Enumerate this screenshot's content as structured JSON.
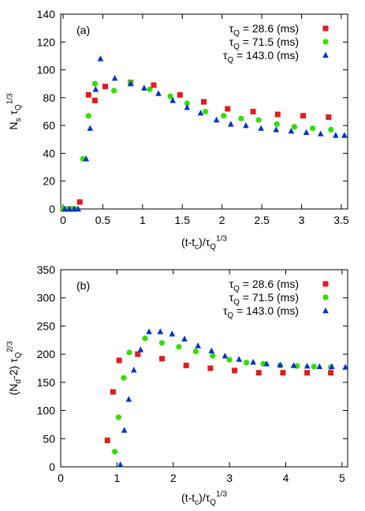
{
  "chart_data": [
    {
      "type": "scatter",
      "panel_label": "(a)",
      "xlabel": "(t-t_c)/τ_Q^{1/3}",
      "ylabel": "N_s τ_Q^{1/3}",
      "xlim": [
        -0.03,
        3.58
      ],
      "ylim": [
        0,
        140
      ],
      "xticks": [
        0,
        0.5,
        1,
        1.5,
        2,
        2.5,
        3,
        3.5
      ],
      "xtick_labels": [
        "0",
        "0.5",
        "1",
        "1.5",
        "2",
        "2.5",
        "3",
        "3.5"
      ],
      "yticks": [
        0,
        20,
        40,
        60,
        80,
        100,
        120,
        140
      ],
      "ytick_labels": [
        "0",
        "20",
        "40",
        "60",
        "80",
        "100",
        "120",
        "140"
      ],
      "grid": false,
      "legend_position": "top-right",
      "series": [
        {
          "name": "τ_Q = 28.6 (ms)",
          "marker": "square",
          "color": "#e41a1c",
          "x": [
            0.0,
            0.03,
            0.06,
            0.1,
            0.13,
            0.21,
            0.32,
            0.4,
            0.53,
            0.85,
            1.14,
            1.47,
            1.77,
            2.07,
            2.39,
            2.7,
            3.02,
            3.34
          ],
          "y": [
            0,
            0,
            0,
            0,
            0,
            5,
            82,
            78,
            88,
            91,
            89,
            82,
            77,
            72,
            70,
            68,
            67,
            66
          ]
        },
        {
          "name": "τ_Q = 71.5 (ms)",
          "marker": "circle",
          "color": "#33dd00",
          "x": [
            0.0,
            0.05,
            0.11,
            0.16,
            0.25,
            0.32,
            0.4,
            0.64,
            0.85,
            1.09,
            1.35,
            1.56,
            1.79,
            2.02,
            2.24,
            2.46,
            2.69,
            2.91,
            3.14,
            3.37
          ],
          "y": [
            0,
            0,
            0,
            0,
            36,
            67,
            90,
            85,
            91,
            86,
            81,
            76,
            70,
            67,
            65,
            64,
            61,
            59,
            58,
            57
          ]
        },
        {
          "name": "τ_Q = 143.0 (ms)",
          "marker": "triangle",
          "color": "#0033cc",
          "x": [
            0.02,
            0.08,
            0.14,
            0.19,
            0.29,
            0.34,
            0.41,
            0.47,
            0.65,
            0.85,
            1.02,
            1.2,
            1.38,
            1.56,
            1.73,
            1.93,
            2.11,
            2.3,
            2.49,
            2.68,
            2.87,
            3.06,
            3.24,
            3.43,
            3.54
          ],
          "y": [
            0,
            0,
            0,
            0,
            36,
            58,
            86,
            108,
            94,
            90,
            87,
            83,
            78,
            73,
            69,
            64,
            61,
            60,
            58,
            57,
            56,
            55,
            54,
            53,
            53
          ]
        }
      ]
    },
    {
      "type": "scatter",
      "panel_label": "(b)",
      "xlabel": "(t-t_c)/τ_Q^{1/3}",
      "ylabel": "(N_d-2) τ_Q^{2/3}",
      "xlim": [
        0,
        5.1
      ],
      "ylim": [
        0,
        350
      ],
      "xticks": [
        0,
        1,
        2,
        3,
        4,
        5
      ],
      "xtick_labels": [
        "0",
        "1",
        "2",
        "3",
        "4",
        "5"
      ],
      "yticks": [
        0,
        50,
        100,
        150,
        200,
        250,
        300,
        350
      ],
      "ytick_labels": [
        "0",
        "50",
        "100",
        "150",
        "200",
        "250",
        "300",
        "350"
      ],
      "grid": false,
      "legend_position": "top-right",
      "series": [
        {
          "name": "τ_Q = 28.6 (ms)",
          "marker": "square",
          "color": "#e41a1c",
          "x": [
            0.83,
            0.93,
            1.04,
            1.37,
            1.8,
            2.23,
            2.66,
            3.09,
            3.52,
            3.95,
            4.38,
            4.8
          ],
          "y": [
            47,
            133,
            189,
            200,
            192,
            180,
            175,
            171,
            167,
            167,
            167,
            167
          ]
        },
        {
          "name": "τ_Q = 71.5 (ms)",
          "marker": "circle",
          "color": "#33dd00",
          "x": [
            0.96,
            1.03,
            1.12,
            1.22,
            1.5,
            1.8,
            2.1,
            2.4,
            2.7,
            3.0,
            3.3,
            3.6,
            3.9,
            4.2,
            4.5,
            4.8
          ],
          "y": [
            27,
            88,
            158,
            203,
            228,
            220,
            213,
            205,
            197,
            190,
            185,
            183,
            180,
            179,
            178,
            177
          ]
        },
        {
          "name": "τ_Q = 143.0 (ms)",
          "marker": "triangle",
          "color": "#0033cc",
          "x": [
            1.06,
            1.13,
            1.21,
            1.3,
            1.42,
            1.57,
            1.77,
            1.98,
            2.2,
            2.44,
            2.68,
            2.92,
            3.17,
            3.42,
            3.66,
            3.9,
            4.14,
            4.38,
            4.6,
            4.82,
            5.06
          ],
          "y": [
            4,
            65,
            120,
            172,
            208,
            240,
            240,
            236,
            227,
            215,
            206,
            197,
            191,
            186,
            183,
            181,
            180,
            179,
            178,
            178,
            177
          ]
        }
      ]
    }
  ]
}
